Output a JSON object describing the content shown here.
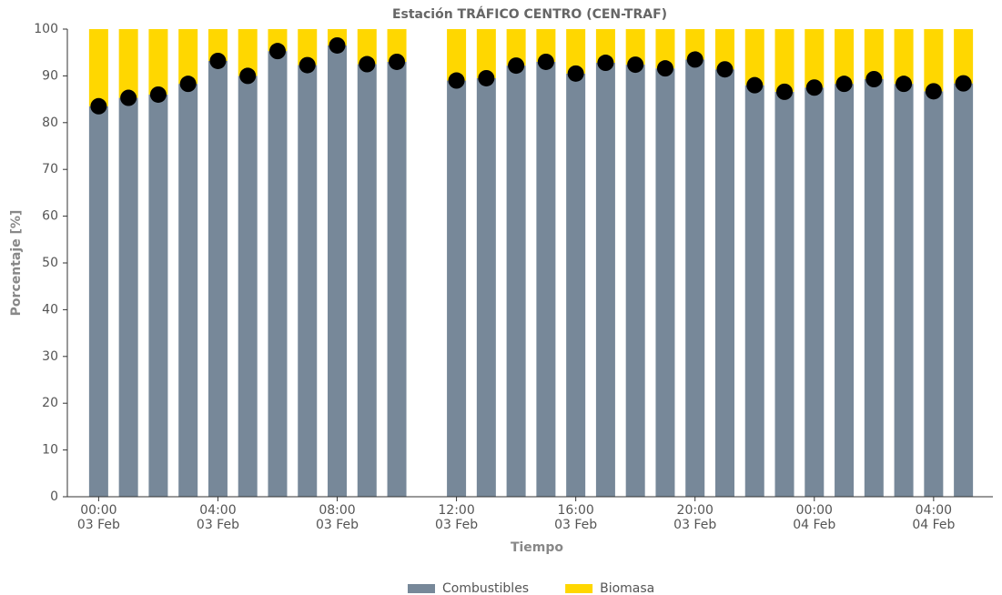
{
  "chart_data": {
    "type": "stacked_bar",
    "title": "Estación TRÁFICO CENTRO (CEN-TRAF)",
    "ylabel": "Porcentaje [%]",
    "xlabel": "Tiempo",
    "categories": [
      [
        "00:00",
        "03 Feb"
      ],
      null,
      null,
      null,
      [
        "04:00",
        "03 Feb"
      ],
      null,
      null,
      null,
      [
        "08:00",
        "03 Feb"
      ],
      null,
      null,
      null,
      [
        "12:00",
        "03 Feb"
      ],
      null,
      null,
      null,
      [
        "16:00",
        "03 Feb"
      ],
      null,
      null,
      null,
      [
        "20:00",
        "03 Feb"
      ],
      null,
      null,
      null,
      [
        "00:00",
        "04 Feb"
      ],
      null,
      null,
      null,
      [
        "04:00",
        "04 Feb"
      ],
      null
    ],
    "series": [
      {
        "name": "Combustibles",
        "color": "#778899",
        "values": [
          83.5,
          85.3,
          86,
          88.3,
          93.2,
          90,
          95.3,
          92.3,
          96.5,
          92.5,
          93,
          null,
          89,
          89.5,
          92.2,
          93,
          90.5,
          92.8,
          92.4,
          91.6,
          93.5,
          91.4,
          88,
          86.6,
          87.5,
          88.3,
          89.3,
          88.3,
          86.7,
          88.4
        ]
      },
      {
        "name": "Biomasa",
        "color": "#ffd700",
        "values": [
          16.5,
          14.7,
          14,
          11.7,
          6.8,
          10,
          4.7,
          7.7,
          3.5,
          7.5,
          7,
          null,
          11,
          10.5,
          7.8,
          7,
          9.5,
          7.2,
          7.6,
          8.4,
          6.5,
          8.6,
          12,
          13.4,
          12.5,
          11.7,
          10.7,
          11.7,
          13.3,
          11.6
        ]
      }
    ],
    "ylim": [
      0,
      100
    ],
    "yticks": [
      0,
      10,
      20,
      30,
      40,
      50,
      60,
      70,
      80,
      90,
      100
    ],
    "grid": false
  }
}
